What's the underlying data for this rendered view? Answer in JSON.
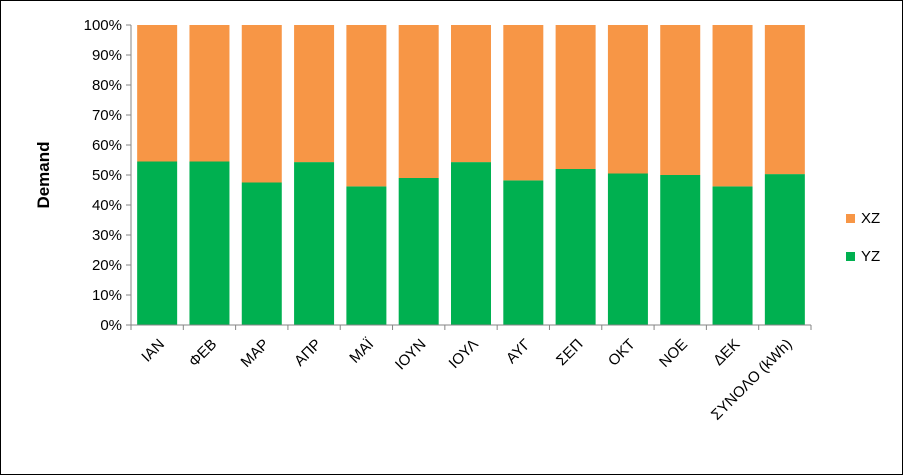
{
  "chart_data": {
    "type": "bar",
    "stacked": true,
    "percent": true,
    "categories": [
      "ΙΑΝ",
      "ΦΕΒ",
      "ΜΑΡ",
      "ΑΠΡ",
      "ΜΑΪ",
      "ΙΟΥΝ",
      "ΙΟΥΛ",
      "ΑΥΓ",
      "ΣΕΠ",
      "ΟΚΤ",
      "ΝΟΕ",
      "ΔΕΚ",
      "ΣΥΝΟΛΟ (kWh)"
    ],
    "series": [
      {
        "name": "ΥΖ",
        "color": "#00b050",
        "values": [
          54.5,
          54.5,
          47.5,
          54.3,
          46.2,
          49.0,
          54.3,
          48.2,
          52.0,
          50.5,
          50.0,
          46.2,
          50.3
        ]
      },
      {
        "name": "ΧΖ",
        "color": "#f79646",
        "values": [
          45.5,
          45.5,
          52.5,
          45.7,
          53.8,
          51.0,
          45.7,
          51.8,
          48.0,
          49.5,
          50.0,
          53.8,
          49.7
        ]
      }
    ],
    "ylabel": "Demand",
    "xlabel": "",
    "ylim": [
      0,
      100
    ],
    "yticks": [
      "0%",
      "10%",
      "20%",
      "30%",
      "40%",
      "50%",
      "60%",
      "70%",
      "80%",
      "90%",
      "100%"
    ],
    "legend": {
      "position": "right",
      "order": [
        "ΧΖ",
        "ΥΖ"
      ]
    },
    "grid": false
  }
}
